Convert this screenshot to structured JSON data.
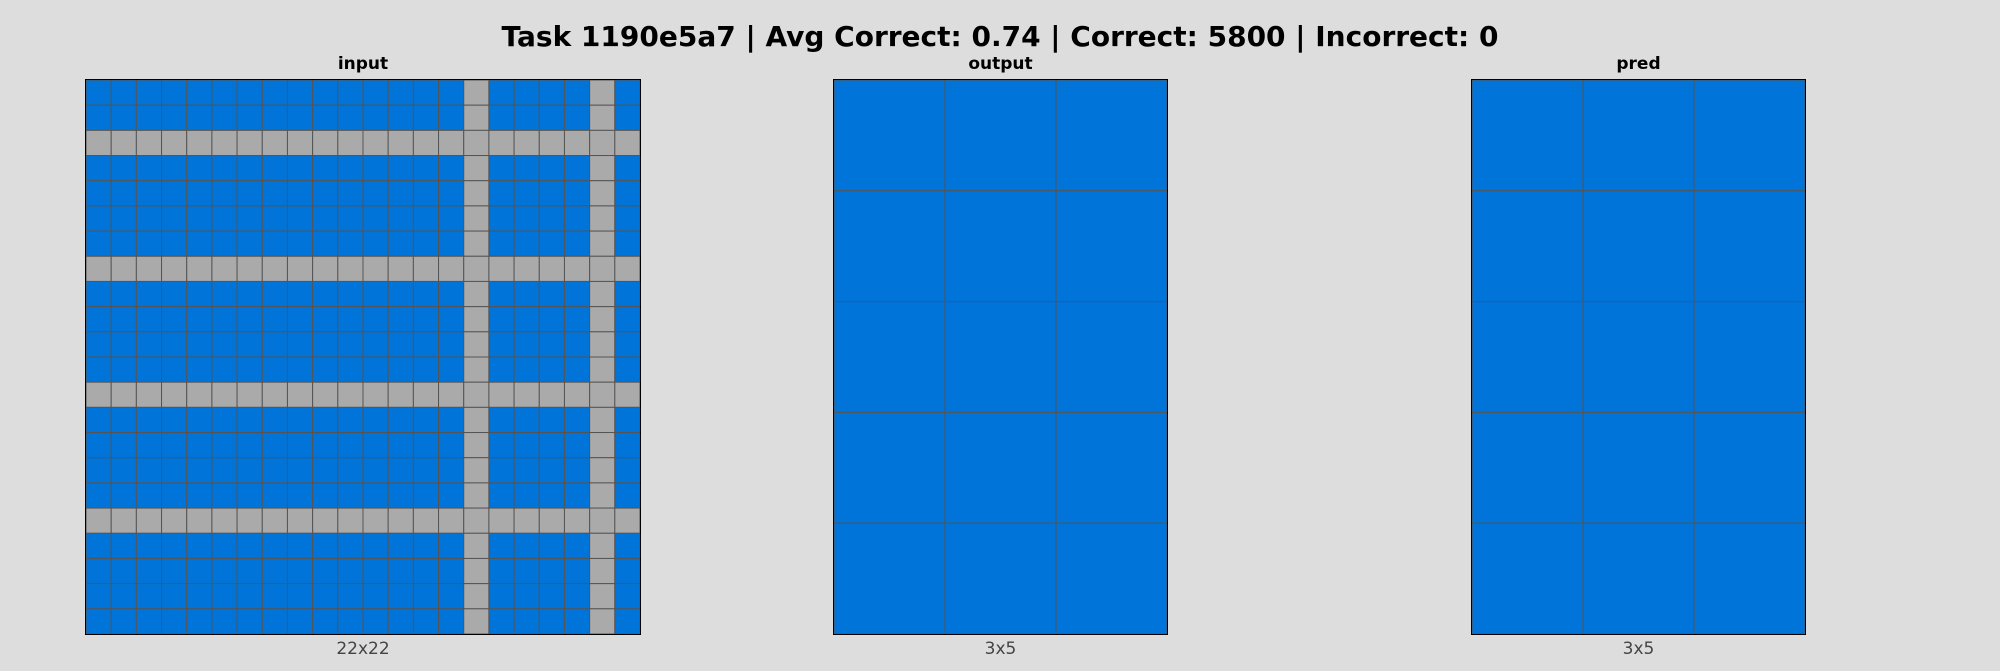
{
  "title": "Task 1190e5a7 | Avg Correct: 0.74 | Correct: 5800 | Incorrect: 0",
  "colors": {
    "background": "#dddddd",
    "blue": "#0074d9",
    "gray": "#aaaaaa",
    "cell_border": "#555555"
  },
  "panels": {
    "input": {
      "label": "input",
      "dims": "22x22",
      "rows": 22,
      "cols": 22,
      "fill": "blue",
      "gray_rows": [
        2,
        7,
        12,
        17
      ],
      "gray_cols": [
        15,
        20
      ]
    },
    "output": {
      "label": "output",
      "dims": "3x5",
      "rows": 5,
      "cols": 3,
      "fill": "blue",
      "gray_rows": [],
      "gray_cols": []
    },
    "pred": {
      "label": "pred",
      "dims": "3x5",
      "rows": 5,
      "cols": 3,
      "fill": "blue",
      "gray_rows": [],
      "gray_cols": []
    }
  }
}
